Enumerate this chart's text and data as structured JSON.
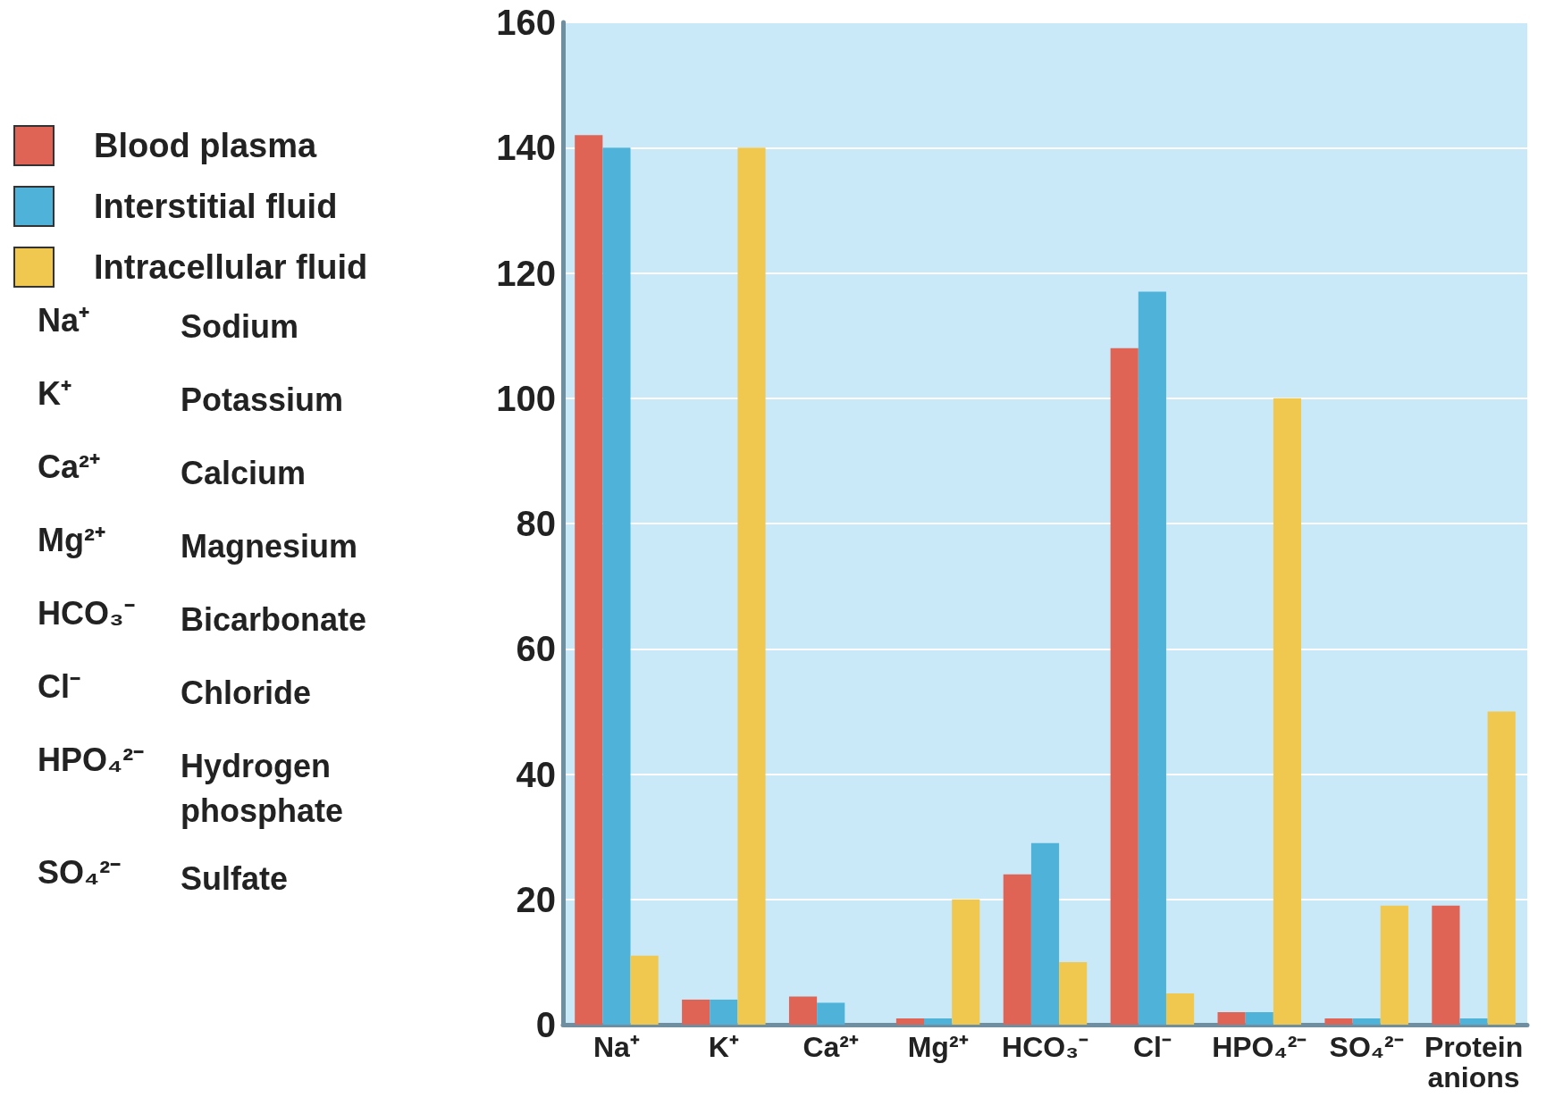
{
  "chart_data": {
    "type": "bar",
    "categories": [
      "Na⁺",
      "K⁺",
      "Ca²⁺",
      "Mg²⁺",
      "HCO₃⁻",
      "Cl⁻",
      "HPO₄²⁻",
      "SO₄²⁻",
      "Protein anions"
    ],
    "series": [
      {
        "name": "Blood plasma",
        "color": "#e06455",
        "values": [
          142,
          4,
          4.5,
          1,
          24,
          108,
          2,
          1,
          19
        ]
      },
      {
        "name": "Interstitial fluid",
        "color": "#4fb3d9",
        "values": [
          140,
          4,
          3.5,
          1,
          29,
          117,
          2,
          1,
          1
        ]
      },
      {
        "name": "Intracellular fluid",
        "color": "#f0c850",
        "values": [
          11,
          140,
          null,
          20,
          10,
          5,
          100,
          19,
          50
        ]
      }
    ],
    "ylim": [
      0,
      160
    ],
    "yticks": [
      0,
      20,
      40,
      60,
      80,
      100,
      120,
      140,
      160
    ],
    "grid": "y",
    "legend": "left",
    "annotations": [
      "Na⁺\tSodium",
      "K⁺\tPotassium",
      "Ca²⁺\tCalcium",
      "Mg²⁺\tMagnesium",
      "HCO₃⁻\tBicarbonate",
      "Cl⁻\tChloride",
      "HPO₄²⁻\tHydrogen\nphosphate",
      "SO₄²⁻\tSulfate"
    ]
  }
}
